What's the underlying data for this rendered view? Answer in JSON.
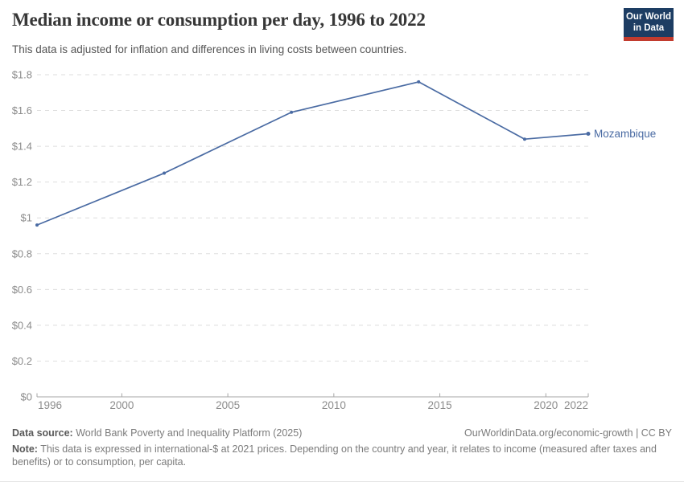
{
  "header": {
    "title": "Median income or consumption per day, 1996 to 2022",
    "subtitle": "This data is adjusted for inflation and differences in living costs between countries.",
    "logo": {
      "line1": "Our World",
      "line2": "in Data"
    }
  },
  "chart_data": {
    "type": "line",
    "title": "Median income or consumption per day, 1996 to 2022",
    "x": [
      1996,
      2002,
      2008,
      2014,
      2019,
      2022
    ],
    "series": [
      {
        "name": "Mozambique",
        "values": [
          0.96,
          1.25,
          1.59,
          1.76,
          1.44,
          1.47
        ]
      }
    ],
    "xlabel": "",
    "ylabel": "",
    "xlim": [
      1996,
      2022
    ],
    "ylim": [
      0,
      1.8
    ],
    "yticks": [
      "$0",
      "$0.2",
      "$0.4",
      "$0.6",
      "$0.8",
      "$1",
      "$1.2",
      "$1.4",
      "$1.6",
      "$1.8"
    ],
    "xticks": [
      "1996",
      "2000",
      "2005",
      "2010",
      "2015",
      "2020",
      "2022"
    ],
    "grid": "horizontal-dashed",
    "legend_position": "right-end-label",
    "colors": {
      "line": "#4a6ba3",
      "grid": "#dedede",
      "axis": "#a6a6a6",
      "tick_label": "#8c8c8c"
    }
  },
  "footer": {
    "datasource_label": "Data source:",
    "datasource_value": "World Bank Poverty and Inequality Platform (2025)",
    "link": "OurWorldinData.org/economic-growth | CC BY",
    "note_label": "Note:",
    "note_value": "This data is expressed in international-$ at 2021 prices. Depending on the country and year, it relates to income (measured after taxes and benefits) or to consumption, per capita."
  }
}
